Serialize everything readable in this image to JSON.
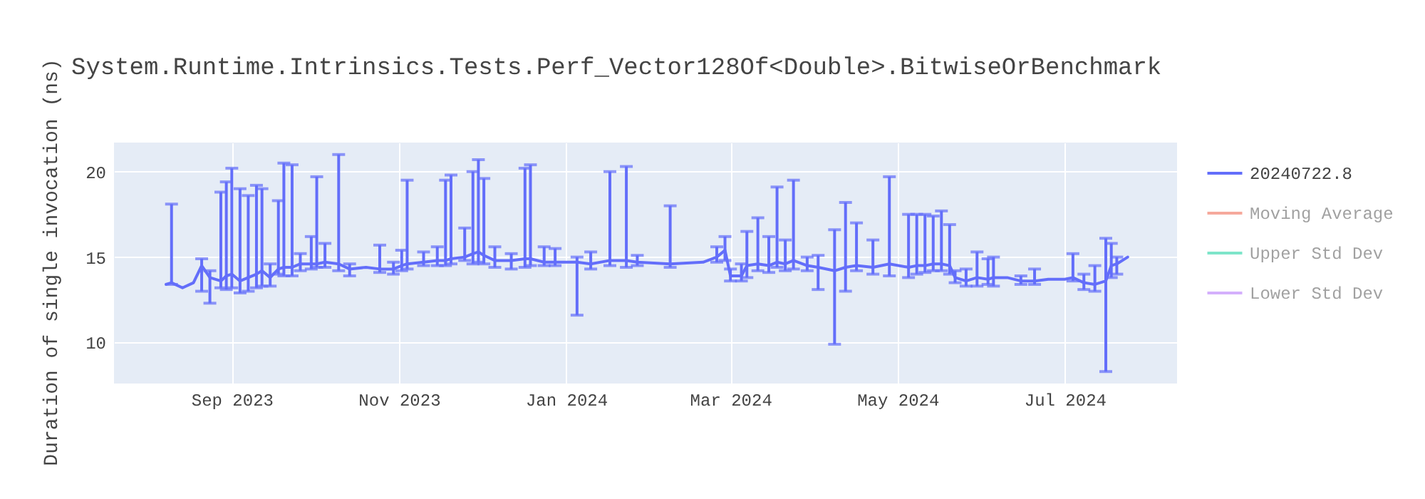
{
  "chart_data": {
    "type": "line",
    "title": "System.Runtime.Intrinsics.Tests.Perf_Vector128Of<Double>.BitwiseOrBenchmark",
    "ylabel": "Duration of single invocation (ns)",
    "xlim": [
      "2023-07-20",
      "2024-08-11"
    ],
    "xticks": [
      {
        "value": "2023-09-01",
        "label": "Sep 2023"
      },
      {
        "value": "2023-11-01",
        "label": "Nov 2023"
      },
      {
        "value": "2024-01-01",
        "label": "Jan 2024"
      },
      {
        "value": "2024-03-01",
        "label": "Mar 2024"
      },
      {
        "value": "2024-05-01",
        "label": "May 2024"
      },
      {
        "value": "2024-07-01",
        "label": "Jul 2024"
      }
    ],
    "ylim": [
      7.6,
      21.7
    ],
    "yticks": [
      10,
      15,
      20
    ],
    "grid": true,
    "legend": "top right",
    "x": [
      "2023-08-08",
      "2023-08-10",
      "2023-08-14",
      "2023-08-18",
      "2023-08-21",
      "2023-08-24",
      "2023-08-28",
      "2023-08-30",
      "2023-09-01",
      "2023-09-04",
      "2023-09-07",
      "2023-09-10",
      "2023-09-12",
      "2023-09-15",
      "2023-09-18",
      "2023-09-20",
      "2023-09-23",
      "2023-09-26",
      "2023-09-30",
      "2023-10-02",
      "2023-10-05",
      "2023-10-10",
      "2023-10-14",
      "2023-10-20",
      "2023-10-25",
      "2023-10-30",
      "2023-11-02",
      "2023-11-04",
      "2023-11-10",
      "2023-11-15",
      "2023-11-18",
      "2023-11-20",
      "2023-11-25",
      "2023-11-28",
      "2023-11-30",
      "2023-12-02",
      "2023-12-06",
      "2023-12-12",
      "2023-12-17",
      "2023-12-19",
      "2023-12-24",
      "2023-12-28",
      "2024-01-05",
      "2024-01-10",
      "2024-01-17",
      "2024-01-23",
      "2024-01-27",
      "2024-02-08",
      "2024-02-20",
      "2024-02-25",
      "2024-02-28",
      "2024-03-01",
      "2024-03-05",
      "2024-03-07",
      "2024-03-11",
      "2024-03-15",
      "2024-03-18",
      "2024-03-21",
      "2024-03-24",
      "2024-03-29",
      "2024-04-02",
      "2024-04-08",
      "2024-04-12",
      "2024-04-16",
      "2024-04-22",
      "2024-04-28",
      "2024-05-05",
      "2024-05-08",
      "2024-05-11",
      "2024-05-14",
      "2024-05-17",
      "2024-05-20",
      "2024-05-22",
      "2024-05-26",
      "2024-05-30",
      "2024-06-03",
      "2024-06-05",
      "2024-06-10",
      "2024-06-15",
      "2024-06-20",
      "2024-06-25",
      "2024-07-01",
      "2024-07-04",
      "2024-07-08",
      "2024-07-12",
      "2024-07-16",
      "2024-07-18",
      "2024-07-20",
      "2024-07-24"
    ],
    "series": [
      {
        "name": "20240722.8",
        "color": "#636efa",
        "values": [
          13.4,
          13.5,
          13.2,
          13.5,
          14.5,
          13.8,
          13.6,
          13.9,
          14.0,
          13.6,
          13.8,
          14.0,
          14.2,
          13.8,
          14.3,
          14.4,
          14.4,
          14.6,
          14.6,
          14.6,
          14.7,
          14.6,
          14.3,
          14.4,
          14.3,
          14.3,
          14.5,
          14.6,
          14.7,
          14.8,
          14.8,
          14.9,
          15.0,
          15.2,
          15.3,
          15.1,
          14.8,
          14.8,
          14.9,
          14.9,
          14.7,
          14.7,
          14.7,
          14.6,
          14.8,
          14.8,
          14.7,
          14.6,
          14.7,
          15.0,
          15.4,
          13.9,
          13.9,
          14.5,
          14.6,
          14.5,
          14.7,
          14.6,
          14.8,
          14.5,
          14.4,
          14.2,
          14.4,
          14.5,
          14.4,
          14.6,
          14.4,
          14.5,
          14.5,
          14.6,
          14.6,
          14.5,
          13.8,
          13.6,
          13.8,
          13.7,
          13.8,
          13.8,
          13.6,
          13.6,
          13.7,
          13.7,
          13.8,
          13.5,
          13.4,
          13.6,
          14.5,
          14.6,
          15.0
        ],
        "errors": [
          null,
          [
            13.4,
            18.1
          ],
          null,
          null,
          [
            13.0,
            14.9
          ],
          [
            12.3,
            14.2
          ],
          [
            13.2,
            18.8
          ],
          [
            13.1,
            19.4
          ],
          [
            13.2,
            20.2
          ],
          [
            12.9,
            19.0
          ],
          [
            13.0,
            18.6
          ],
          [
            13.2,
            19.2
          ],
          [
            13.3,
            19.0
          ],
          [
            13.3,
            14.6
          ],
          [
            14.0,
            18.3
          ],
          [
            13.9,
            20.5
          ],
          [
            13.9,
            20.4
          ],
          [
            14.2,
            15.2
          ],
          [
            14.3,
            16.2
          ],
          [
            14.4,
            19.7
          ],
          [
            14.4,
            15.8
          ],
          [
            14.2,
            21.0
          ],
          [
            13.9,
            14.6
          ],
          null,
          [
            14.1,
            15.7
          ],
          [
            14.0,
            14.7
          ],
          [
            14.2,
            15.4
          ],
          [
            14.3,
            19.5
          ],
          [
            14.5,
            15.3
          ],
          [
            14.5,
            15.6
          ],
          [
            14.5,
            19.5
          ],
          [
            14.6,
            19.8
          ],
          [
            14.8,
            16.7
          ],
          [
            14.6,
            20.0
          ],
          [
            14.7,
            20.7
          ],
          [
            14.6,
            19.6
          ],
          [
            14.4,
            15.6
          ],
          [
            14.3,
            15.2
          ],
          [
            14.4,
            20.2
          ],
          [
            14.5,
            20.4
          ],
          [
            14.5,
            15.6
          ],
          [
            14.5,
            15.5
          ],
          [
            11.6,
            15.0
          ],
          [
            14.3,
            15.3
          ],
          [
            14.5,
            20.0
          ],
          [
            14.4,
            20.3
          ],
          [
            14.5,
            15.1
          ],
          [
            14.4,
            18.0
          ],
          null,
          [
            14.7,
            15.6
          ],
          [
            14.8,
            16.2
          ],
          [
            13.6,
            14.3
          ],
          [
            13.6,
            14.6
          ],
          [
            13.8,
            16.5
          ],
          [
            14.2,
            17.3
          ],
          [
            14.1,
            16.2
          ],
          [
            14.4,
            19.1
          ],
          [
            14.2,
            16.0
          ],
          [
            14.3,
            19.5
          ],
          [
            14.2,
            15.0
          ],
          [
            13.1,
            15.1
          ],
          [
            9.9,
            16.6
          ],
          [
            13.0,
            18.2
          ],
          [
            14.2,
            17.0
          ],
          [
            14.0,
            16.0
          ],
          [
            13.9,
            19.7
          ],
          [
            13.8,
            17.5
          ],
          [
            14.0,
            17.5
          ],
          [
            14.1,
            17.5
          ],
          [
            14.2,
            17.4
          ],
          [
            14.2,
            17.7
          ],
          [
            14.0,
            16.9
          ],
          [
            13.5,
            14.2
          ],
          [
            13.3,
            14.3
          ],
          [
            13.3,
            15.3
          ],
          [
            13.4,
            14.9
          ],
          [
            13.3,
            15.0
          ],
          null,
          [
            13.4,
            13.9
          ],
          [
            13.4,
            14.3
          ],
          null,
          null,
          [
            13.6,
            15.2
          ],
          [
            13.1,
            14.0
          ],
          [
            13.0,
            14.5
          ],
          [
            8.3,
            16.1
          ],
          [
            13.8,
            15.8
          ],
          [
            14.0,
            15.0
          ],
          null
        ]
      },
      {
        "name": "Moving Average",
        "color": "#ef553b",
        "values": [
          null,
          null,
          null,
          null,
          null,
          null,
          null,
          null,
          null,
          null,
          null,
          null,
          null,
          null,
          null,
          null,
          null,
          null,
          null,
          null,
          null,
          null,
          null,
          null,
          null,
          null,
          null,
          null,
          null,
          null,
          null,
          null,
          null,
          null,
          null,
          null,
          null,
          null,
          null,
          null,
          null,
          null,
          null,
          null,
          null,
          null,
          null,
          null,
          null,
          null,
          null,
          null,
          null,
          null,
          null,
          null,
          null,
          null,
          null,
          null,
          null,
          null,
          null,
          null,
          null,
          null,
          null,
          null,
          null,
          null,
          null,
          null,
          null,
          null,
          null,
          null,
          null,
          null,
          null,
          null,
          null,
          null,
          null,
          null,
          null,
          null,
          null,
          null,
          null
        ]
      },
      {
        "name": "Upper Std Dev",
        "color": "#00cc96",
        "values": [
          null,
          null,
          null,
          null,
          null,
          null,
          null,
          null,
          null,
          null,
          null,
          null,
          null,
          null,
          null,
          null,
          null,
          null,
          null,
          null,
          null,
          null,
          null,
          null,
          null,
          null,
          null,
          null,
          null,
          null,
          null,
          null,
          null,
          null,
          null,
          null,
          null,
          null,
          null,
          null,
          null,
          null,
          null,
          null,
          null,
          null,
          null,
          null,
          null,
          null,
          null,
          null,
          null,
          null,
          null,
          null,
          null,
          null,
          null,
          null,
          null,
          null,
          null,
          null,
          null,
          null,
          null,
          null,
          null,
          null,
          null,
          null,
          null,
          null,
          null,
          null,
          null,
          null,
          null,
          null,
          null,
          null,
          null,
          null,
          null,
          null,
          null,
          null,
          null
        ]
      },
      {
        "name": "Lower Std Dev",
        "color": "#ab63fa",
        "values": [
          null,
          null,
          null,
          null,
          null,
          null,
          null,
          null,
          null,
          null,
          null,
          null,
          null,
          null,
          null,
          null,
          null,
          null,
          null,
          null,
          null,
          null,
          null,
          null,
          null,
          null,
          null,
          null,
          null,
          null,
          null,
          null,
          null,
          null,
          null,
          null,
          null,
          null,
          null,
          null,
          null,
          null,
          null,
          null,
          null,
          null,
          null,
          null,
          null,
          null,
          null,
          null,
          null,
          null,
          null,
          null,
          null,
          null,
          null,
          null,
          null,
          null,
          null,
          null,
          null,
          null,
          null,
          null,
          null,
          null,
          null,
          null,
          null,
          null,
          null,
          null,
          null,
          null,
          null,
          null,
          null,
          null,
          null,
          null,
          null,
          null,
          null,
          null,
          null
        ]
      }
    ]
  }
}
